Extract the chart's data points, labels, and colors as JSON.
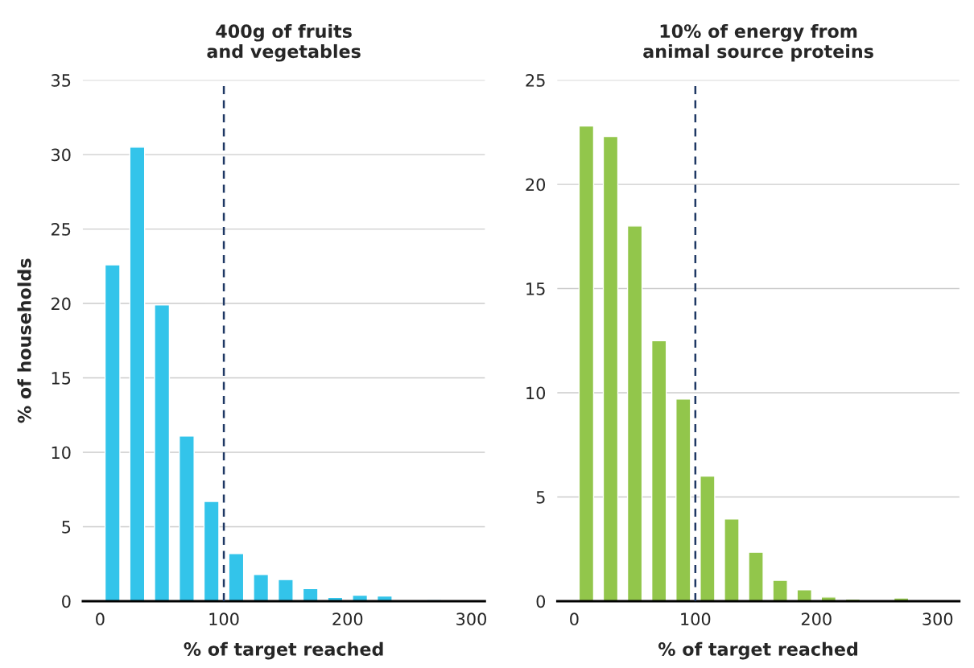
{
  "chart_data": [
    {
      "type": "histogram",
      "title": "400g of fruits\nand vegetables",
      "xlabel": "% of target reached",
      "ylabel": "% of households",
      "bins": [
        0,
        20,
        40,
        60,
        80,
        100,
        120,
        140,
        160,
        180,
        200,
        220,
        240,
        260,
        280
      ],
      "values": [
        22.6,
        30.5,
        19.9,
        11.1,
        6.7,
        3.2,
        1.8,
        1.45,
        0.85,
        0.25,
        0.4,
        0.35,
        0.05,
        0.1
      ],
      "color": "#33c4ea",
      "xlim": [
        -14,
        311
      ],
      "xticks": [
        0,
        100,
        200,
        300
      ],
      "ylim": [
        0,
        35
      ],
      "yticks": [
        0,
        5,
        10,
        15,
        20,
        25,
        30,
        35
      ],
      "grid": "y",
      "ref_lines": [
        {
          "axis": "x",
          "value": 100,
          "color": "#1f3864",
          "line_style": "dashed"
        }
      ]
    },
    {
      "type": "histogram",
      "title": "10% of energy from\nanimal source proteins",
      "xlabel": "% of target reached",
      "bins": [
        0,
        20,
        40,
        60,
        80,
        100,
        120,
        140,
        160,
        180,
        200,
        220,
        240,
        260,
        280
      ],
      "values": [
        22.8,
        22.3,
        18.0,
        12.5,
        9.7,
        6.0,
        3.95,
        2.35,
        1.0,
        0.55,
        0.2,
        0.1,
        0.05,
        0.15
      ],
      "color": "#92c64b",
      "xlim": [
        -14,
        318
      ],
      "xticks": [
        0,
        100,
        200,
        300
      ],
      "ylim": [
        0,
        25
      ],
      "yticks": [
        0,
        5,
        10,
        15,
        20,
        25
      ],
      "grid": "y",
      "ref_lines": [
        {
          "axis": "x",
          "value": 100,
          "color": "#1f3864",
          "line_style": "dashed"
        }
      ]
    }
  ]
}
